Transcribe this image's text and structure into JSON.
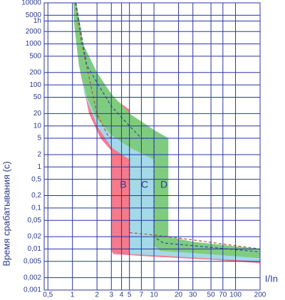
{
  "chart_data": {
    "type": "area",
    "y_label": "Время срабатывания (c)",
    "x_label": "I/In",
    "xscale": "log",
    "yscale": "log",
    "grid": true,
    "xlim": [
      0.45,
      200
    ],
    "ylim": [
      0.001,
      10000
    ],
    "xticks": [
      {
        "value": 0.5,
        "label": "0,5"
      },
      1,
      2,
      3,
      4,
      5,
      7,
      10,
      20,
      30,
      50,
      70,
      100,
      200
    ],
    "yticks": [
      10000,
      5000,
      {
        "value": 3600,
        "label": "1h"
      },
      2000,
      1000,
      500,
      200,
      100,
      50,
      20,
      10,
      5,
      2,
      1,
      {
        "value": 0.5,
        "label": "0,5"
      },
      {
        "value": 0.2,
        "label": "0,2"
      },
      {
        "value": 0.1,
        "label": "0,1"
      },
      {
        "value": 0.05,
        "label": "0,05"
      },
      {
        "value": 0.02,
        "label": "0,02"
      },
      {
        "value": 0.01,
        "label": "0,01"
      },
      {
        "value": 0.005,
        "label": "0,005"
      },
      {
        "value": 0.002,
        "label": "0,002"
      },
      {
        "value": 0.001,
        "label": "0,001"
      }
    ],
    "series": [
      {
        "name": "B",
        "color": "#f47a8c",
        "style": "area",
        "x": [
          1.05,
          1.12,
          1.25,
          1.6,
          2.5,
          5,
          5,
          10,
          50,
          200,
          200,
          50,
          10,
          3.2,
          3,
          3,
          2.2,
          1.6,
          1.25,
          1.1
        ],
        "values": [
          10000,
          10000,
          1000,
          220,
          66,
          25,
          0.012,
          0.01,
          0.008,
          0.0065,
          0.0045,
          0.0055,
          0.0065,
          0.0075,
          0.009,
          2.5,
          5,
          20,
          200,
          2000
        ]
      },
      {
        "name": "C",
        "color": "#a3d9e8",
        "style": "area",
        "x": [
          1.05,
          1.12,
          1.3,
          2,
          4,
          10,
          10,
          200,
          200,
          10,
          5,
          5,
          3,
          2,
          1.4,
          1.15
        ],
        "values": [
          10000,
          10000,
          1000,
          100,
          20,
          6,
          0.012,
          0.008,
          0.005,
          0.007,
          0.0075,
          1.5,
          3,
          10,
          60,
          1000
        ]
      },
      {
        "name": "D",
        "color": "#7fcc80",
        "style": "area",
        "x": [
          1.03,
          1.12,
          1.35,
          2,
          3,
          5,
          10,
          15,
          15,
          30,
          200,
          200,
          30,
          12,
          10,
          10,
          5,
          3,
          2,
          1.5,
          1.2,
          1.05
        ],
        "values": [
          10000,
          10000,
          1000,
          200,
          60,
          20,
          8,
          5,
          0.02,
          0.015,
          0.01,
          0.006,
          0.008,
          0.009,
          0.012,
          1.5,
          3,
          6,
          15,
          50,
          300,
          3000
        ]
      },
      {
        "color": "#b5562a",
        "style": "dashed",
        "x": [
          1.08,
          1.3,
          2,
          2.7,
          3,
          5,
          5,
          10,
          15,
          200
        ],
        "values": [
          10000,
          1000,
          20,
          6,
          5,
          5,
          0.025,
          0.022,
          0.02,
          0.01
        ]
      },
      {
        "color": "#2a4fa0",
        "style": "dashed",
        "x": [
          1.1,
          1.5,
          3,
          5,
          7,
          10,
          10,
          13,
          200
        ],
        "values": [
          10000,
          300,
          30,
          10,
          5,
          5,
          0.02,
          0.014,
          0.0085
        ]
      }
    ]
  }
}
